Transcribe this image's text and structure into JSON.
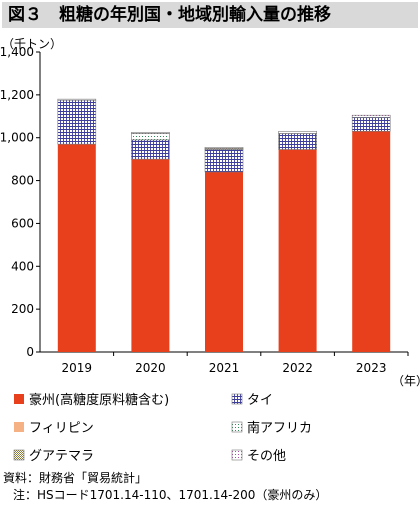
{
  "title": "図３　粗糖の年別国・地域別輸入量の推移",
  "notes": {
    "source": "資料：財務省「貿易統計」",
    "note": "注：HSコード1701.14-110、1701.14-200（豪州のみ）"
  },
  "chart_data": {
    "type": "bar",
    "stacked": true,
    "y_unit_label": "（千トン）",
    "x_unit_label": "（年）",
    "categories": [
      "2019",
      "2020",
      "2021",
      "2022",
      "2023"
    ],
    "ylim": [
      0,
      1400
    ],
    "yticks": [
      0,
      200,
      400,
      600,
      800,
      1000,
      1200,
      1400
    ],
    "ytick_labels": [
      "0",
      "200",
      "400",
      "600",
      "800",
      "1,000",
      "1,200",
      "1,400"
    ],
    "grid": false,
    "legend_position": "bottom",
    "series": [
      {
        "name": "豪州(高糖度原料糖含む)",
        "values": [
          970,
          900,
          840,
          945,
          1030
        ],
        "color": "#e8401c",
        "pattern": "solid"
      },
      {
        "name": "タイ",
        "values": [
          205,
          90,
          105,
          75,
          65
        ],
        "color": "#4a4aa8",
        "pattern": "grid"
      },
      {
        "name": "フィリピン",
        "values": [
          0,
          0,
          0,
          0,
          0
        ],
        "color": "#f5b183",
        "pattern": "solid"
      },
      {
        "name": "南アフリカ",
        "values": [
          0,
          30,
          0,
          0,
          0
        ],
        "color": "#2e8b57",
        "pattern": "dots"
      },
      {
        "name": "グアテマラ",
        "values": [
          0,
          0,
          5,
          0,
          0
        ],
        "color": "#8b7d3a",
        "pattern": "dense"
      },
      {
        "name": "その他",
        "values": [
          5,
          5,
          5,
          10,
          10
        ],
        "color": "#b04aa8",
        "pattern": "dots"
      }
    ]
  }
}
